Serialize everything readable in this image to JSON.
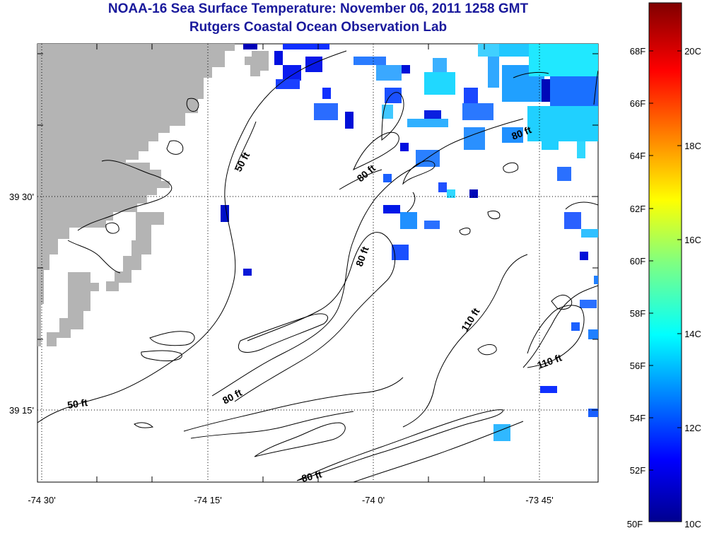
{
  "header": {
    "title": "NOAA-16 Sea Surface Temperature:  November 06, 2011 1258 GMT",
    "subtitle": "Rutgers Coastal Ocean Observation Lab"
  },
  "axes": {
    "lon_ticks": [
      "-74 30'",
      "-74 15'",
      "-74 0'",
      "-73 45'"
    ],
    "lat_ticks": [
      "39 30'",
      "39 15'"
    ]
  },
  "colorbar": {
    "f_labels": [
      "68F",
      "66F",
      "64F",
      "62F",
      "60F",
      "58F",
      "56F",
      "54F",
      "52F",
      "50F"
    ],
    "c_labels": [
      "20C",
      "18C",
      "16C",
      "14C",
      "12C",
      "10C"
    ]
  },
  "contour_labels": [
    {
      "text": "50 ft"
    },
    {
      "text": "50 ft"
    },
    {
      "text": "80 ft"
    },
    {
      "text": "80 ft"
    },
    {
      "text": "80 ft"
    },
    {
      "text": "80 ft"
    },
    {
      "text": "80 ft"
    },
    {
      "text": "110 ft"
    },
    {
      "text": "110 ft"
    }
  ],
  "colors": {
    "title": "#1a1a9c",
    "land": "#b4b4b4",
    "contour": "#000000"
  }
}
